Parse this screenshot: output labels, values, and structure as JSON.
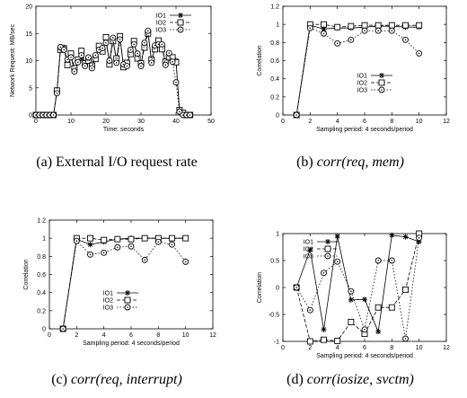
{
  "panels": [
    {
      "caption_label": "(a)",
      "caption_text": "External I/O request rate",
      "caption_math": "",
      "chart": {
        "type": "line",
        "xlabel": "Time: seconds",
        "ylabel": "Network Request: MB/sec",
        "xlim": [
          0,
          50
        ],
        "ylim": [
          0,
          20
        ],
        "xticks": [
          0,
          10,
          20,
          30,
          40,
          50
        ],
        "yticks": [
          0,
          5,
          10,
          15,
          20
        ],
        "legend": "top-right",
        "series": [
          {
            "name": "IO1",
            "marker": "star",
            "dash": "solid",
            "x": [
              0,
              1,
              2,
              3,
              4,
              5,
              6,
              7,
              8,
              9,
              10,
              11,
              12,
              13,
              14,
              15,
              16,
              17,
              18,
              19,
              20,
              21,
              22,
              23,
              24,
              25,
              26,
              27,
              28,
              29,
              30,
              31,
              32,
              33,
              34,
              35,
              36,
              37,
              38,
              39,
              40,
              41,
              42,
              43,
              44
            ],
            "y": [
              0,
              0,
              0,
              0,
              0,
              0,
              4.2,
              12.2,
              12.5,
              9.8,
              11,
              8.2,
              10,
              10.5,
              9.3,
              10.3,
              8.9,
              10.7,
              12.3,
              12,
              13.8,
              9.7,
              13.9,
              10,
              14.2,
              9,
              9.3,
              11.7,
              13.3,
              10.9,
              9.2,
              13,
              15.3,
              9.9,
              12.4,
              13.4,
              12.7,
              9.5,
              11,
              10.2,
              10,
              0.8,
              0,
              0,
              0
            ]
          },
          {
            "name": "IO2",
            "marker": "square",
            "dash": "dash",
            "x": [
              0,
              1,
              2,
              3,
              4,
              5,
              6,
              7,
              8,
              9,
              10,
              11,
              12,
              13,
              14,
              15,
              16,
              17,
              18,
              19,
              20,
              21,
              22,
              23,
              24,
              25,
              26,
              27,
              28,
              29,
              30,
              31,
              32,
              33,
              34,
              35,
              36,
              37,
              38,
              39,
              40,
              41,
              42,
              43,
              44
            ],
            "y": [
              0,
              0,
              0,
              0,
              0,
              0,
              4.5,
              12,
              12.2,
              9.2,
              11.3,
              8.6,
              10.2,
              11.8,
              9.5,
              10,
              9.1,
              10.3,
              12.7,
              11.7,
              14.3,
              9.3,
              13.6,
              10.4,
              14.5,
              8.8,
              9.6,
              11.2,
              13.6,
              10.4,
              9.5,
              12.4,
              15,
              10.2,
              12.1,
              13.7,
              12.1,
              9.8,
              10.6,
              10.6,
              9.7,
              0.9,
              0.4,
              0,
              0
            ]
          },
          {
            "name": "IO3",
            "marker": "circle",
            "dash": "dot",
            "x": [
              0,
              1,
              2,
              3,
              4,
              5,
              6,
              7,
              8,
              9,
              10,
              11,
              12,
              13,
              14,
              15,
              16,
              17,
              18,
              19,
              20,
              21,
              22,
              23,
              24,
              25,
              26,
              27,
              28,
              29,
              30,
              31,
              32,
              33,
              34,
              35,
              36,
              37,
              38,
              39,
              40,
              41,
              42,
              43,
              44
            ],
            "y": [
              0,
              0,
              0,
              0,
              0,
              0,
              4,
              12.5,
              12,
              10.2,
              10.6,
              8,
              9.7,
              11,
              9,
              10.6,
              8.6,
              11,
              12,
              12.3,
              13.3,
              10,
              14.2,
              9.6,
              13.9,
              9.3,
              9,
              12,
              13,
              11.3,
              9,
              13.3,
              15.5,
              9.6,
              12.8,
              13,
              13,
              9.2,
              11.4,
              9.8,
              6,
              0.6,
              0,
              0,
              0
            ]
          }
        ]
      }
    },
    {
      "caption_label": "(b)",
      "caption_text": "",
      "caption_math": "corr(req, mem)",
      "chart": {
        "type": "line",
        "xlabel": "Sampling period: 4 seconds/period",
        "ylabel": "Correlation",
        "xlim": [
          0,
          12
        ],
        "ylim": [
          0,
          1.2
        ],
        "xticks": [
          0,
          2,
          4,
          6,
          8,
          10,
          12
        ],
        "yticks": [
          0,
          0.2,
          0.4,
          0.6,
          0.8,
          1,
          1.2
        ],
        "legend": "bottom-right",
        "series": [
          {
            "name": "IO1",
            "marker": "star",
            "dash": "solid",
            "x": [
              1,
              2,
              3,
              4,
              5,
              6,
              7,
              8,
              9,
              10
            ],
            "y": [
              0,
              0.99,
              0.95,
              0.96,
              0.96,
              0.97,
              0.98,
              0.98,
              0.97,
              0.97
            ]
          },
          {
            "name": "IO2",
            "marker": "square",
            "dash": "dash",
            "x": [
              1,
              2,
              3,
              4,
              5,
              6,
              7,
              8,
              9,
              10
            ],
            "y": [
              0,
              1.0,
              1.0,
              0.97,
              0.98,
              0.99,
              0.99,
              0.99,
              0.99,
              0.99
            ]
          },
          {
            "name": "IO3",
            "marker": "circle",
            "dash": "dot",
            "x": [
              1,
              2,
              3,
              4,
              5,
              6,
              7,
              8,
              9,
              10
            ],
            "y": [
              0,
              0.96,
              0.9,
              0.79,
              0.83,
              0.93,
              0.93,
              0.93,
              0.83,
              0.68
            ]
          }
        ]
      }
    },
    {
      "caption_label": "(c)",
      "caption_text": "",
      "caption_math": "corr(req, interrupt)",
      "chart": {
        "type": "line",
        "xlabel": "Sampling period: 4 seconds/period",
        "ylabel": "Correlation",
        "xlim": [
          0,
          12
        ],
        "ylim": [
          0,
          1.2
        ],
        "xticks": [
          0,
          2,
          4,
          6,
          8,
          10,
          12
        ],
        "yticks": [
          0,
          0.2,
          0.4,
          0.6,
          0.8,
          1,
          1.2
        ],
        "legend": "bottom-center",
        "series": [
          {
            "name": "IO1",
            "marker": "star",
            "dash": "solid",
            "x": [
              1,
              2,
              3,
              4,
              5,
              6,
              7,
              8,
              9,
              10
            ],
            "y": [
              0,
              0.99,
              0.93,
              0.96,
              0.99,
              1.0,
              1.0,
              1.0,
              1.0,
              1.0
            ]
          },
          {
            "name": "IO2",
            "marker": "square",
            "dash": "dash",
            "x": [
              1,
              2,
              3,
              4,
              5,
              6,
              7,
              8,
              9,
              10
            ],
            "y": [
              0,
              1.0,
              1.0,
              0.98,
              0.99,
              0.99,
              1.0,
              1.0,
              1.0,
              1.0
            ]
          },
          {
            "name": "IO3",
            "marker": "circle",
            "dash": "dot",
            "x": [
              1,
              2,
              3,
              4,
              5,
              6,
              7,
              8,
              9,
              10
            ],
            "y": [
              0,
              0.97,
              0.82,
              0.84,
              0.9,
              0.91,
              0.76,
              0.96,
              0.93,
              0.74
            ]
          }
        ]
      }
    },
    {
      "caption_label": "(d)",
      "caption_text": "",
      "caption_math": "corr(iosize, svctm)",
      "chart": {
        "type": "line",
        "xlabel": "Sampling period: 4 seconds/period",
        "ylabel": "Correlation",
        "xlim": [
          0,
          12
        ],
        "ylim": [
          -1,
          1
        ],
        "xticks": [
          0,
          2,
          4,
          6,
          8,
          10,
          12
        ],
        "yticks": [
          -1,
          -0.5,
          0,
          0.5,
          1
        ],
        "legend": "top-left",
        "series": [
          {
            "name": "IO1",
            "marker": "star",
            "dash": "solid",
            "x": [
              1,
              2,
              3,
              4,
              5,
              6,
              7,
              8,
              9,
              10
            ],
            "y": [
              0,
              0.7,
              -0.78,
              0.95,
              -0.23,
              -0.22,
              -0.82,
              0.97,
              0.94,
              0.85
            ]
          },
          {
            "name": "IO2",
            "marker": "square",
            "dash": "dash",
            "x": [
              1,
              2,
              3,
              4,
              5,
              6,
              7,
              8,
              9,
              10
            ],
            "y": [
              0,
              -1.0,
              -0.97,
              -0.99,
              -0.64,
              -0.86,
              -0.37,
              -0.37,
              -0.04,
              1.0
            ]
          },
          {
            "name": "IO3",
            "marker": "circle",
            "dash": "dot",
            "x": [
              1,
              2,
              3,
              4,
              5,
              6,
              7,
              8,
              9,
              10
            ],
            "y": [
              0,
              -0.42,
              0.27,
              0.48,
              -0.07,
              -0.78,
              0.5,
              0.5,
              -0.95,
              0.92
            ]
          }
        ]
      }
    }
  ]
}
